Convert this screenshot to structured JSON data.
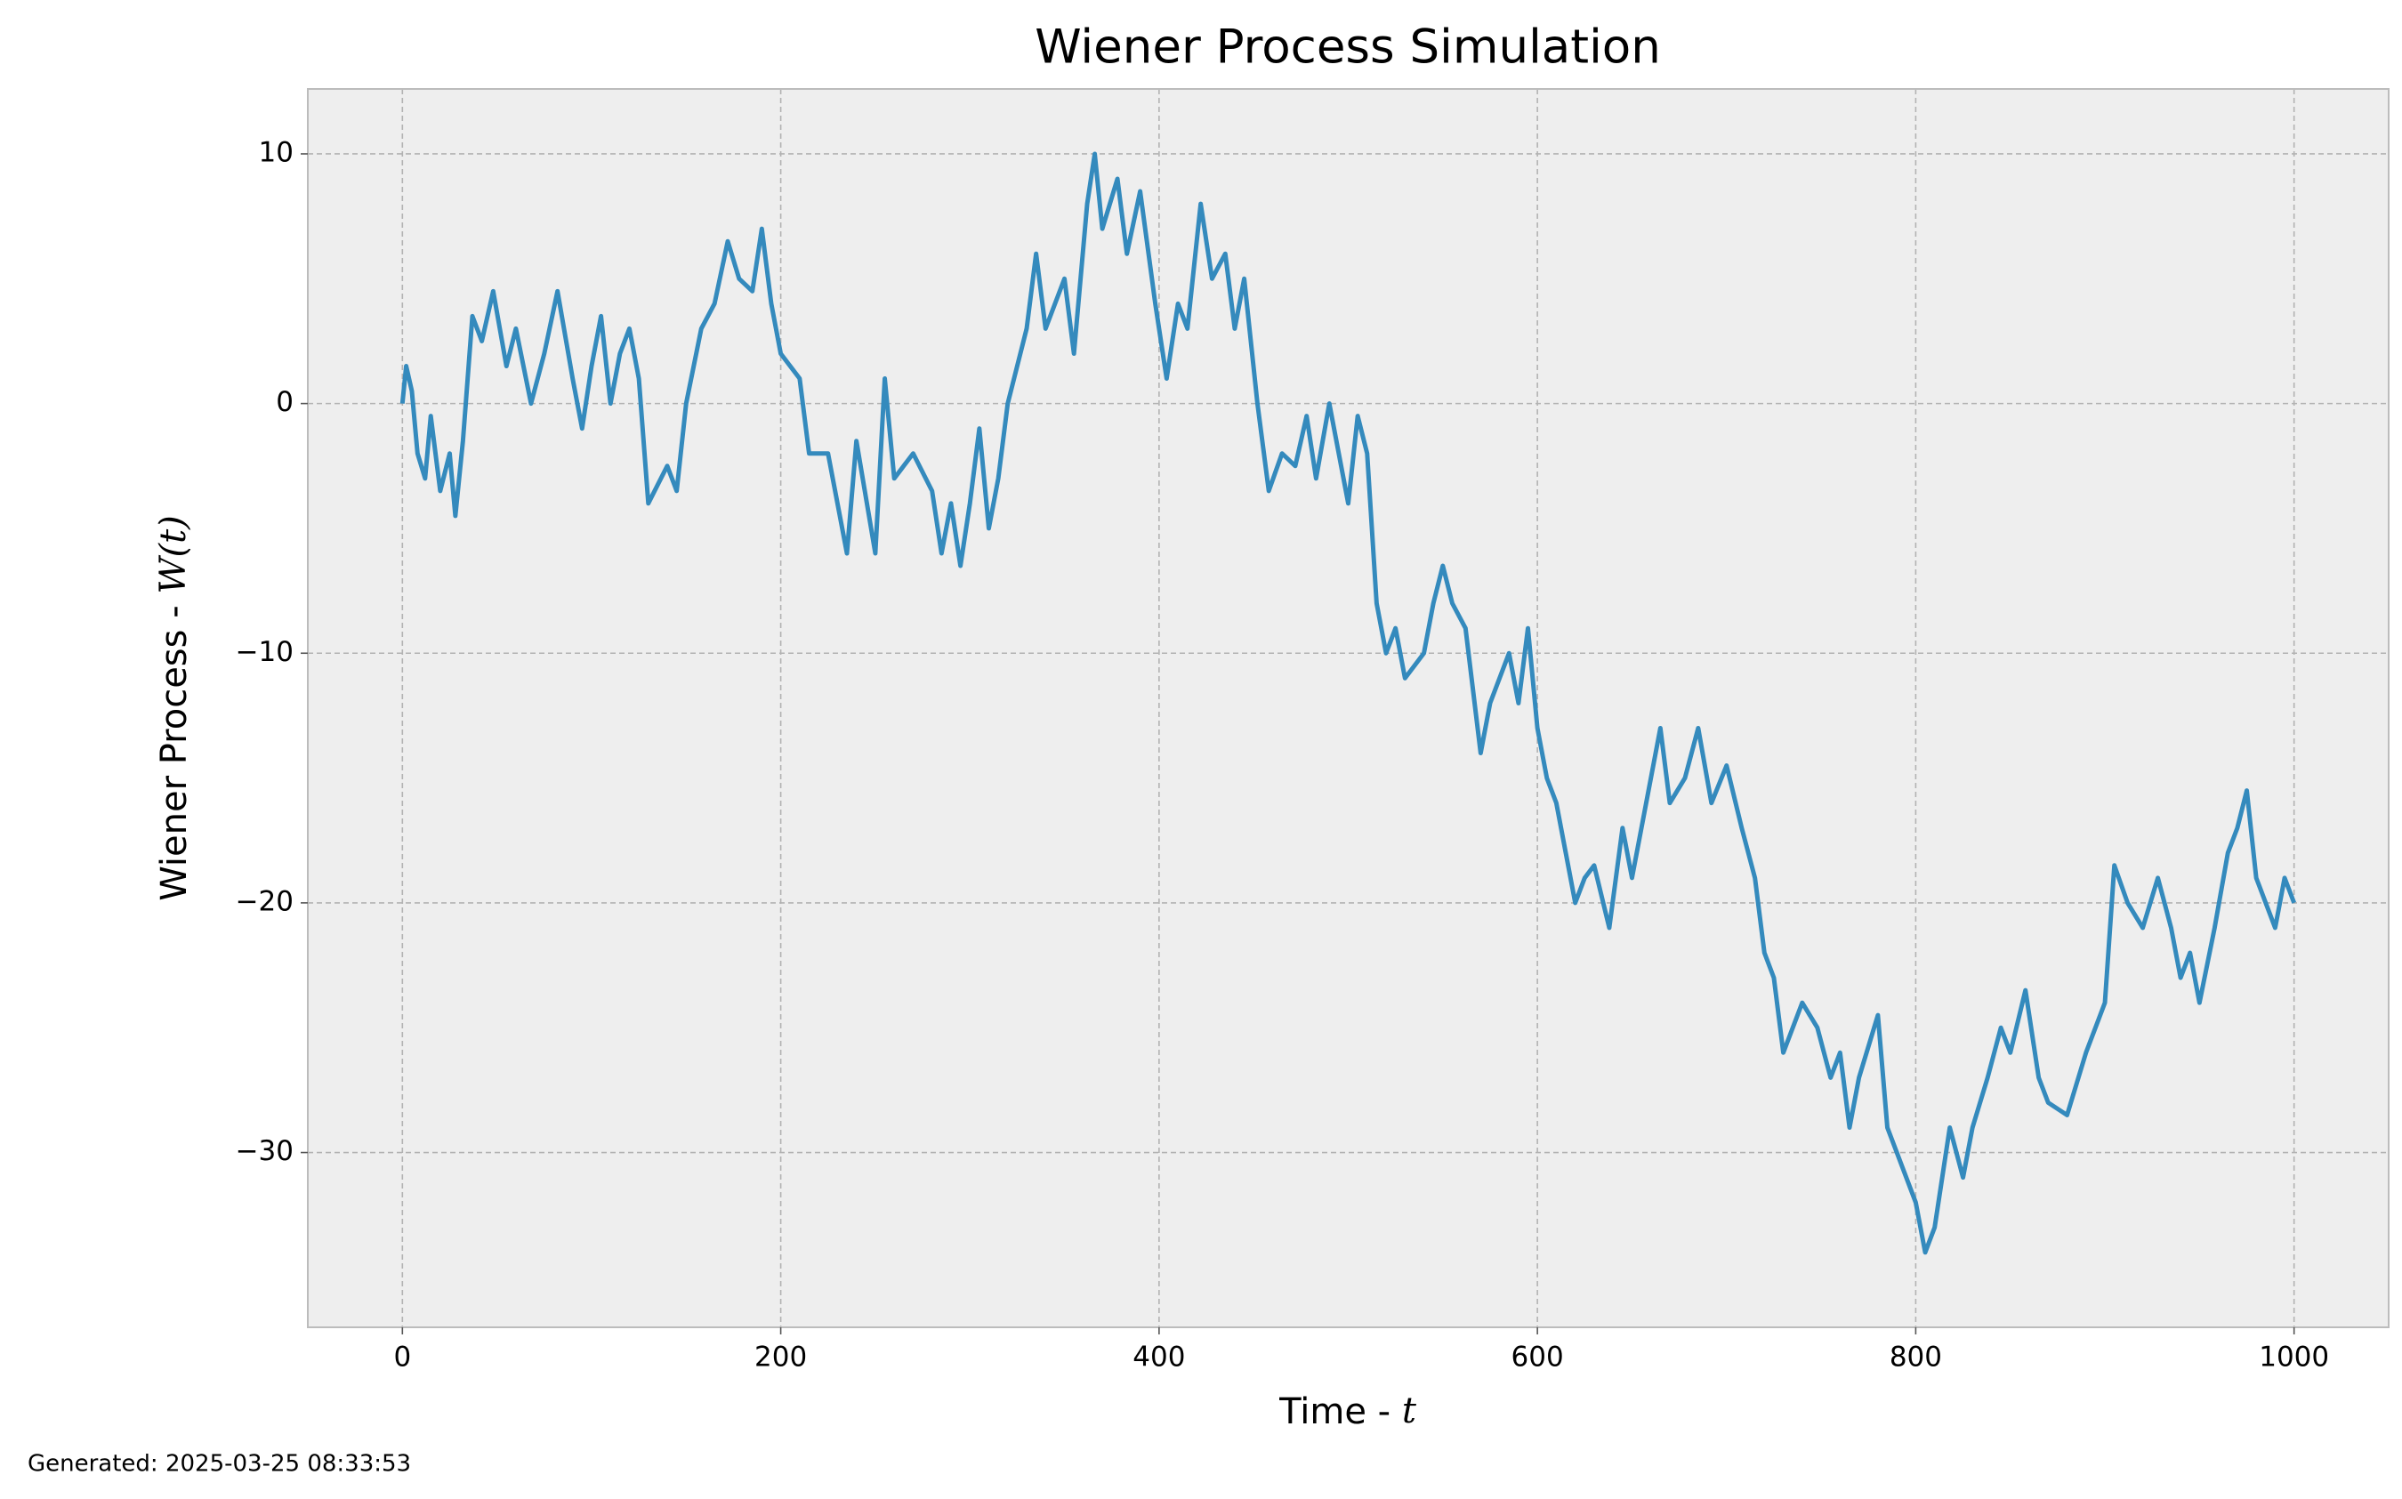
{
  "chart_data": {
    "type": "line",
    "title": "Wiener Process Simulation",
    "xlabel": [
      "Time - ",
      "t"
    ],
    "ylabel": [
      "Wiener Process - ",
      "W(t)"
    ],
    "footer": "Generated: 2025-03-25 08:33:53",
    "grid": true,
    "xlim": [
      -50,
      1050
    ],
    "ylim": [
      -37,
      12.6
    ],
    "xticks": [
      0,
      200,
      400,
      600,
      800,
      1000
    ],
    "yticks": [
      {
        "value": -30,
        "label": "−30"
      },
      {
        "value": -20,
        "label": "−20"
      },
      {
        "value": -10,
        "label": "−10"
      },
      0,
      10
    ],
    "x": [
      0,
      2,
      5,
      8,
      12,
      15,
      20,
      25,
      28,
      32,
      37,
      42,
      48,
      55,
      60,
      68,
      75,
      82,
      90,
      95,
      100,
      105,
      110,
      115,
      120,
      125,
      130,
      140,
      145,
      150,
      158,
      165,
      172,
      178,
      185,
      190,
      195,
      200,
      210,
      215,
      225,
      230,
      235,
      240,
      250,
      255,
      260,
      270,
      280,
      285,
      290,
      295,
      300,
      305,
      310,
      315,
      320,
      330,
      335,
      340,
      350,
      355,
      362,
      366,
      370,
      378,
      383,
      390,
      398,
      404,
      410,
      415,
      422,
      428,
      435,
      440,
      445,
      452,
      458,
      465,
      472,
      478,
      483,
      490,
      495,
      500,
      505,
      510,
      515,
      520,
      525,
      530,
      540,
      545,
      550,
      555,
      562,
      570,
      575,
      585,
      590,
      595,
      600,
      605,
      610,
      615,
      620,
      625,
      630,
      638,
      645,
      650,
      655,
      660,
      665,
      670,
      678,
      685,
      692,
      700,
      708,
      715,
      720,
      725,
      730,
      740,
      748,
      755,
      760,
      765,
      770,
      780,
      785,
      790,
      795,
      800,
      805,
      810,
      818,
      825,
      830,
      838,
      845,
      850,
      858,
      865,
      870,
      880,
      890,
      900,
      905,
      912,
      920,
      928,
      935,
      940,
      945,
      950,
      958,
      965,
      970,
      975,
      980,
      985,
      990,
      995,
      1000
    ],
    "series": [
      {
        "name": "W(t)",
        "color": "#348abd",
        "values": [
          0,
          1.5,
          0.5,
          -2,
          -3,
          -0.5,
          -3.5,
          -2,
          -4.5,
          -1.5,
          3.5,
          2.5,
          4.5,
          1.5,
          3,
          0,
          2,
          4.5,
          1,
          -1,
          1.5,
          3.5,
          0,
          2,
          3,
          1,
          -4,
          -2.5,
          -3.5,
          0,
          3,
          4,
          6.5,
          5,
          4.5,
          7,
          4,
          2,
          1,
          -2,
          -2,
          -4,
          -6,
          -1.5,
          -6,
          1,
          -3,
          -2,
          -3.5,
          -6,
          -4,
          -6.5,
          -4,
          -1,
          -5,
          -3,
          0,
          3,
          6,
          3,
          5,
          2,
          8,
          10,
          7,
          9,
          6,
          8.5,
          4,
          1,
          4,
          3,
          8,
          5,
          6,
          3,
          5,
          0,
          -3.5,
          -2,
          -2.5,
          -0.5,
          -3,
          0,
          -2,
          -4,
          -0.5,
          -2,
          -8,
          -10,
          -9,
          -11,
          -10,
          -8,
          -6.5,
          -8,
          -9,
          -14,
          -12,
          -10,
          -12,
          -9,
          -13,
          -15,
          -16,
          -18,
          -20,
          -19,
          -18.5,
          -21,
          -17,
          -19,
          -17,
          -15,
          -13,
          -16,
          -15,
          -13,
          -16,
          -14.5,
          -17,
          -19,
          -22,
          -23,
          -26,
          -24,
          -25,
          -27,
          -26,
          -29,
          -27,
          -24.5,
          -29,
          -30,
          -31,
          -32,
          -34,
          -33,
          -29,
          -31,
          -29,
          -27,
          -25,
          -26,
          -23.5,
          -27,
          -28,
          -28.5,
          -26,
          -24,
          -18.5,
          -20,
          -21,
          -19,
          -21,
          -23,
          -22,
          -24,
          -21,
          -18,
          -17,
          -15.5,
          -19,
          -20,
          -21,
          -19,
          -20
        ]
      }
    ]
  }
}
